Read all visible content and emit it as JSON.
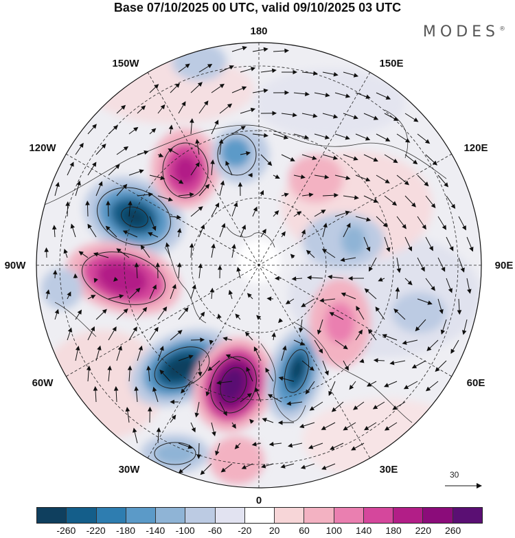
{
  "title": "Base 07/10/2025 00 UTC, valid 09/10/2025 03 UTC",
  "brand": "MODES",
  "brand_mark": "®",
  "longitude_labels": {
    "n180": "180",
    "w150": "150W",
    "e150": "150E",
    "w120": "120W",
    "e120": "120E",
    "w90": "90W",
    "e90": "90E",
    "w60": "60W",
    "e60": "60E",
    "w30": "30W",
    "e30": "30E",
    "s0": "0"
  },
  "vector_reference": {
    "label": "30"
  },
  "colorbar": {
    "colors": [
      "#0f3f5e",
      "#145e8a",
      "#2e7db0",
      "#5b9ac8",
      "#8fb4d6",
      "#bccbe3",
      "#e2e3f1",
      "#ffffff",
      "#f7d6d8",
      "#f3b2c2",
      "#ea7fb0",
      "#d5479c",
      "#b21e87",
      "#8b0c7a",
      "#5a0f73"
    ],
    "tick_labels": [
      "-260",
      "-220",
      "-180",
      "-140",
      "-100",
      "-60",
      "-20",
      "20",
      "60",
      "100",
      "140",
      "180",
      "220",
      "260"
    ]
  },
  "anomalies": [
    {
      "name": "negative-center-alaska",
      "value": -240
    },
    {
      "name": "positive-center-canada",
      "value": 200
    },
    {
      "name": "negative-center-west-atlantic",
      "value": -260
    },
    {
      "name": "positive-center-east-atlantic",
      "value": 280
    },
    {
      "name": "negative-center-scandinavia",
      "value": -220
    },
    {
      "name": "positive-center-central-asia",
      "value": 160
    },
    {
      "name": "negative-center-bering",
      "value": -140
    },
    {
      "name": "positive-center-beaufort",
      "value": 180
    }
  ]
}
